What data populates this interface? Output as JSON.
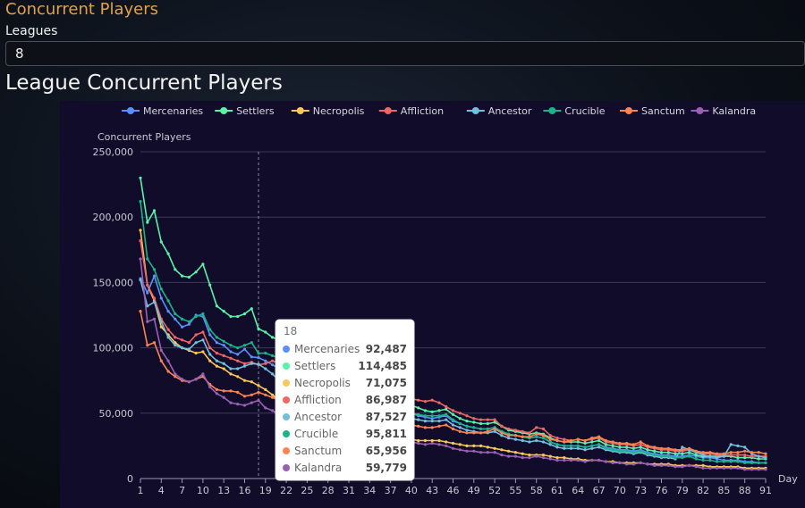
{
  "page": {
    "title": "Concurrent Players",
    "leagues_label": "Leagues",
    "leagues_value": "8",
    "chart_heading": "League Concurrent Players"
  },
  "chart_data": {
    "type": "line",
    "ylabel": "Concurrent Players",
    "xlabel": "Day",
    "ylim": [
      0,
      250000
    ],
    "xlim": [
      1,
      91
    ],
    "yticks": [
      "250,000",
      "200,000",
      "150,000",
      "100,000",
      "50,000",
      "0"
    ],
    "yticks_values": [
      250000,
      200000,
      150000,
      100000,
      50000,
      0
    ],
    "xticks": [
      1,
      4,
      7,
      10,
      13,
      16,
      19,
      22,
      25,
      28,
      31,
      34,
      37,
      40,
      43,
      46,
      49,
      52,
      55,
      58,
      61,
      64,
      67,
      70,
      73,
      76,
      79,
      82,
      85,
      88,
      91
    ],
    "grid": true,
    "legend_position": "top-right",
    "x": [
      1,
      2,
      3,
      4,
      5,
      6,
      7,
      8,
      9,
      10,
      11,
      12,
      13,
      14,
      15,
      16,
      17,
      18,
      19,
      20,
      21,
      22,
      23,
      24,
      25,
      26,
      27,
      28,
      29,
      30,
      31,
      32,
      33,
      34,
      35,
      36,
      37,
      38,
      39,
      40,
      41,
      42,
      43,
      44,
      45,
      46,
      47,
      48,
      49,
      50,
      51,
      52,
      53,
      54,
      55,
      56,
      57,
      58,
      59,
      60,
      61,
      62,
      63,
      64,
      65,
      66,
      67,
      68,
      69,
      70,
      71,
      72,
      73,
      74,
      75,
      76,
      77,
      78,
      79,
      80,
      81,
      82,
      83,
      84,
      85,
      86,
      87,
      88,
      89,
      90,
      91
    ],
    "series": [
      {
        "name": "Mercenaries",
        "color": "#5b8ff9",
        "values": [
          153000,
          142000,
          155000,
          138000,
          128000,
          122000,
          116000,
          118000,
          125000,
          124000,
          110000,
          104000,
          102000,
          97000,
          95000,
          99000,
          93000,
          92487,
          90000,
          87000,
          84000,
          82000,
          80000,
          78000,
          76000,
          74000,
          72000,
          70000,
          68000,
          66000,
          64000,
          62000,
          60000,
          58000,
          56000,
          54000,
          53000,
          52000,
          51000,
          50000,
          48000,
          47000,
          46000,
          47000,
          48000,
          44000,
          42000,
          40000,
          39000,
          38000,
          38000,
          39000,
          36000,
          34000,
          33000,
          32000,
          31000,
          32000,
          31000,
          28000,
          26000,
          25000,
          25000,
          25000,
          24000,
          25000,
          26000,
          24000,
          23000,
          22000,
          22000,
          21000,
          22000,
          20000,
          19000,
          18000,
          18000,
          17000,
          17000,
          18000,
          17000,
          16000,
          16000,
          15000,
          14000,
          14000,
          14000,
          13000,
          13000,
          12000,
          12000
        ]
      },
      {
        "name": "Settlers",
        "color": "#5af2a8",
        "values": [
          230000,
          196000,
          205000,
          181000,
          172000,
          160000,
          155000,
          154000,
          158000,
          164000,
          148000,
          132000,
          128000,
          124000,
          124000,
          126000,
          130000,
          114485,
          112000,
          108000,
          106000,
          104000,
          102000,
          100000,
          98000,
          96000,
          93000,
          90000,
          88000,
          84000,
          80000,
          76000,
          72000,
          68000,
          64000,
          60000,
          58000,
          57000,
          57000,
          56000,
          54000,
          52000,
          51000,
          52000,
          53000,
          49000,
          46000,
          44000,
          43000,
          42000,
          42000,
          43000,
          40000,
          37000,
          36000,
          35000,
          34000,
          35000,
          34000,
          31000,
          29000,
          28000,
          28000,
          28000,
          27000,
          28000,
          29000,
          26000,
          25000,
          24000,
          24000,
          23000,
          24000,
          22000,
          21000,
          20000,
          20000,
          19000,
          19000,
          20000,
          18000,
          17000,
          17000,
          17000,
          17000,
          17000,
          16000,
          16000,
          16000,
          15000,
          15000
        ]
      },
      {
        "name": "Necropolis",
        "color": "#fac858",
        "values": [
          190000,
          148000,
          136000,
          116000,
          110000,
          104000,
          100000,
          98000,
          96000,
          97000,
          90000,
          86000,
          84000,
          80000,
          78000,
          75000,
          74000,
          71075,
          68000,
          64000,
          60000,
          56000,
          53000,
          50000,
          47000,
          44000,
          42000,
          40000,
          38000,
          36000,
          35000,
          34000,
          33000,
          32000,
          31000,
          31000,
          30000,
          30000,
          30000,
          30000,
          29000,
          29000,
          29000,
          29000,
          28000,
          27000,
          26000,
          25000,
          25000,
          25000,
          24000,
          23000,
          22000,
          21000,
          20000,
          19000,
          18000,
          18000,
          18000,
          17000,
          16000,
          16000,
          15000,
          15000,
          14000,
          14000,
          14000,
          13000,
          13000,
          12000,
          12000,
          12000,
          12000,
          11000,
          11000,
          11000,
          11000,
          10000,
          10000,
          10000,
          10000,
          10000,
          9000,
          9000,
          9000,
          9000,
          9000,
          8000,
          8000,
          8000,
          8000
        ]
      },
      {
        "name": "Affliction",
        "color": "#ee6666",
        "values": [
          182000,
          148000,
          138000,
          122000,
          114000,
          108000,
          106000,
          104000,
          110000,
          112000,
          100000,
          96000,
          94000,
          92000,
          90000,
          88000,
          89000,
          86987,
          88000,
          90000,
          88000,
          86000,
          84000,
          82000,
          80000,
          78000,
          76000,
          74000,
          72000,
          70000,
          68000,
          66000,
          65000,
          64000,
          63000,
          62000,
          62000,
          61000,
          61000,
          61000,
          60000,
          59000,
          60000,
          58000,
          55000,
          52000,
          50000,
          48000,
          46000,
          45000,
          45000,
          45000,
          40000,
          38000,
          37000,
          36000,
          35000,
          39000,
          38000,
          33000,
          31000,
          30000,
          29000,
          30000,
          29000,
          30000,
          31000,
          28000,
          27000,
          26000,
          26000,
          25000,
          26000,
          24000,
          23000,
          22000,
          22000,
          21000,
          21000,
          22000,
          20000,
          19000,
          19000,
          18000,
          18000,
          18000,
          18000,
          18000,
          17000,
          17000,
          17000
        ]
      },
      {
        "name": "Ancestor",
        "color": "#73c0de",
        "values": [
          152000,
          132000,
          135000,
          120000,
          108000,
          102000,
          100000,
          99000,
          104000,
          106000,
          95000,
          90000,
          88000,
          84000,
          84000,
          86000,
          88000,
          87527,
          84000,
          80000,
          75000,
          70000,
          66000,
          62000,
          60000,
          58000,
          56000,
          54000,
          52000,
          50000,
          49000,
          48000,
          47000,
          46000,
          46000,
          46000,
          46000,
          46000,
          46000,
          46000,
          45000,
          44000,
          44000,
          44000,
          45000,
          41000,
          39000,
          37000,
          36000,
          35000,
          35000,
          36000,
          33000,
          31000,
          30000,
          29000,
          28000,
          29000,
          28000,
          26000,
          24000,
          23000,
          23000,
          23000,
          22000,
          23000,
          24000,
          22000,
          21000,
          20000,
          20000,
          19000,
          20000,
          18000,
          17000,
          16000,
          16000,
          15000,
          24000,
          22000,
          20000,
          18000,
          17000,
          16000,
          17000,
          26000,
          25000,
          24000,
          19000,
          17000,
          16000
        ]
      },
      {
        "name": "Crucible",
        "color": "#1bb38a",
        "values": [
          212000,
          168000,
          160000,
          145000,
          136000,
          126000,
          122000,
          120000,
          124000,
          126000,
          114000,
          108000,
          105000,
          102000,
          100000,
          102000,
          104000,
          95811,
          96000,
          94000,
          92000,
          90000,
          86000,
          82000,
          78000,
          74000,
          70000,
          66000,
          62000,
          58000,
          55000,
          53000,
          52000,
          51000,
          51000,
          51000,
          51000,
          50000,
          50000,
          50000,
          49000,
          48000,
          48000,
          48000,
          49000,
          45000,
          42000,
          40000,
          39000,
          38000,
          38000,
          39000,
          36000,
          34000,
          33000,
          32000,
          31000,
          32000,
          31000,
          28000,
          26000,
          25000,
          25000,
          25000,
          24000,
          25000,
          26000,
          23000,
          22000,
          21000,
          21000,
          20000,
          21000,
          19000,
          18000,
          17000,
          17000,
          16000,
          16000,
          17000,
          15000,
          14000,
          14000,
          13000,
          13000,
          13000,
          13000,
          12000,
          12000,
          12000,
          12000
        ]
      },
      {
        "name": "Sanctum",
        "color": "#fc8452",
        "values": [
          128000,
          102000,
          104000,
          90000,
          82000,
          78000,
          75000,
          74000,
          76000,
          78000,
          72000,
          68000,
          67000,
          67000,
          66000,
          63000,
          64000,
          65956,
          64000,
          62000,
          60000,
          58000,
          56000,
          54000,
          52000,
          50000,
          48000,
          46000,
          44000,
          42000,
          41000,
          40000,
          40000,
          40000,
          41000,
          42000,
          42000,
          41000,
          41000,
          41000,
          40000,
          39000,
          39000,
          40000,
          41000,
          38000,
          36000,
          35000,
          35000,
          35000,
          36000,
          38000,
          35000,
          33000,
          33000,
          32000,
          32000,
          34000,
          33000,
          30000,
          29000,
          28000,
          29000,
          30000,
          29000,
          31000,
          32000,
          29000,
          28000,
          27000,
          27000,
          26000,
          28000,
          25000,
          24000,
          23000,
          23000,
          22000,
          22000,
          23000,
          21000,
          20000,
          20000,
          19000,
          19000,
          20000,
          20000,
          21000,
          20000,
          20000,
          19000
        ]
      },
      {
        "name": "Kalandra",
        "color": "#9a60b4",
        "values": [
          168000,
          120000,
          122000,
          98000,
          90000,
          80000,
          76000,
          74000,
          76000,
          80000,
          70000,
          65000,
          62000,
          58000,
          57000,
          56000,
          58000,
          59779,
          54000,
          52000,
          49000,
          46000,
          43000,
          40000,
          38000,
          36000,
          34000,
          33000,
          32000,
          31000,
          30000,
          30000,
          29000,
          29000,
          29000,
          29000,
          29000,
          28000,
          28000,
          28000,
          27000,
          26000,
          27000,
          26000,
          25000,
          23000,
          22000,
          21000,
          21000,
          20000,
          20000,
          20000,
          18000,
          17000,
          17000,
          16000,
          16000,
          17000,
          16000,
          15000,
          14000,
          14000,
          14000,
          14000,
          13000,
          14000,
          14000,
          13000,
          12000,
          12000,
          11000,
          11000,
          12000,
          11000,
          10000,
          10000,
          10000,
          9000,
          9000,
          10000,
          9000,
          8000,
          8000,
          8000,
          8000,
          8000,
          8000,
          7000,
          7000,
          7000,
          7000
        ]
      }
    ],
    "tooltip": {
      "day": "18",
      "rows": [
        {
          "name": "Mercenaries",
          "value": "92,487",
          "color": "#5b8ff9"
        },
        {
          "name": "Settlers",
          "value": "114,485",
          "color": "#5af2a8"
        },
        {
          "name": "Necropolis",
          "value": "71,075",
          "color": "#fac858"
        },
        {
          "name": "Affliction",
          "value": "86,987",
          "color": "#ee6666"
        },
        {
          "name": "Ancestor",
          "value": "87,527",
          "color": "#73c0de"
        },
        {
          "name": "Crucible",
          "value": "95,811",
          "color": "#1bb38a"
        },
        {
          "name": "Sanctum",
          "value": "65,956",
          "color": "#fc8452"
        },
        {
          "name": "Kalandra",
          "value": "59,779",
          "color": "#9a60b4"
        }
      ]
    }
  }
}
